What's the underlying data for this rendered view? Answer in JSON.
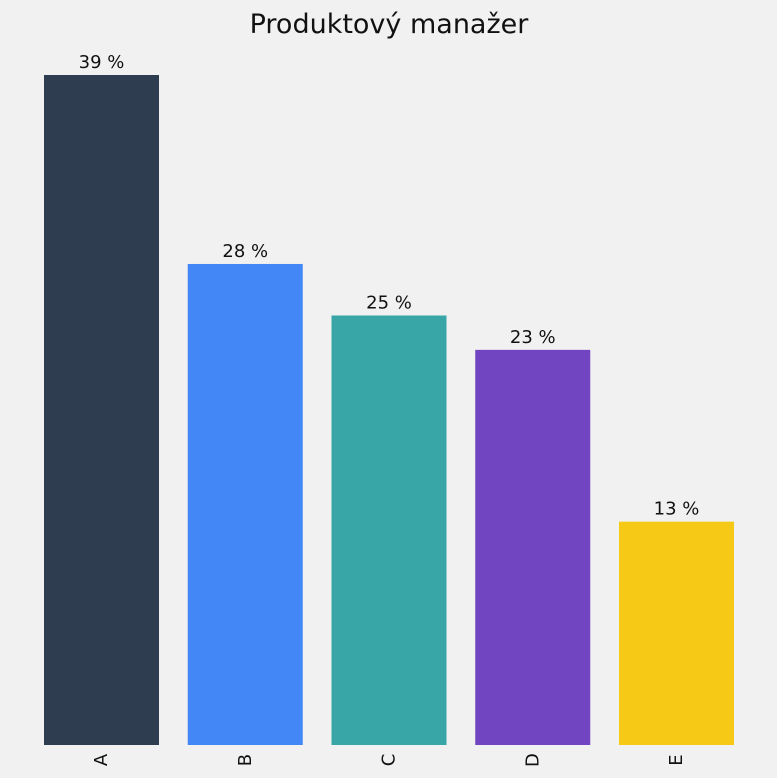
{
  "chart_data": {
    "type": "bar",
    "title": "Produktový manažer",
    "xlabel": "",
    "ylabel": "",
    "categories": [
      "A",
      "B",
      "C",
      "D",
      "E"
    ],
    "values": [
      39,
      28,
      25,
      23,
      13
    ],
    "data_labels": [
      "39 %",
      "28 %",
      "25 %",
      "23 %",
      "13 %"
    ],
    "colors": [
      "#2e3e50",
      "#4287f5",
      "#38a6a6",
      "#7144c1",
      "#f6c917"
    ],
    "ylim": [
      0,
      39
    ],
    "grid": false,
    "legend": "none",
    "background": "#f1f1f1"
  }
}
